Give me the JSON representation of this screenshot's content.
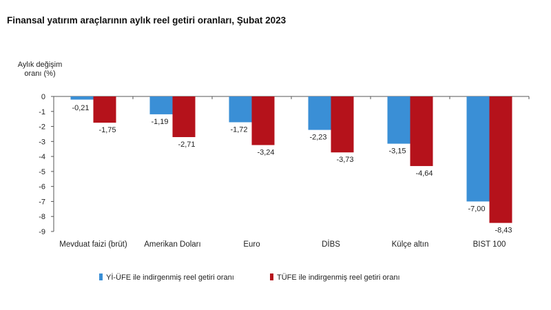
{
  "title": "Finansal yatırım araçlarının aylık reel getiri oranları, Şubat 2023",
  "colors": {
    "series_1": "#3a8fd6",
    "series_2": "#b5121b",
    "axis": "#555555",
    "text": "#222222"
  },
  "chart_data": {
    "type": "bar",
    "title": "Finansal yatırım araçlarının aylık reel getiri oranları, Şubat 2023",
    "ylabel": "Aylık değişim oranı (%)",
    "ylabel_lines": [
      "Aylık değişim",
      "oranı (%)"
    ],
    "xlabel": "",
    "ylim": [
      -9,
      0
    ],
    "yticks": [
      0,
      -1,
      -2,
      -3,
      -4,
      -5,
      -6,
      -7,
      -8,
      -9
    ],
    "grid": false,
    "legend_position": "bottom",
    "categories": [
      "Mevduat faizi (brüt)",
      "Amerikan Doları",
      "Euro",
      "DİBS",
      "Külçe altın",
      "BIST 100"
    ],
    "series": [
      {
        "name": "Yİ-ÜFE ile indirgenmiş reel getiri oranı",
        "values": [
          -0.21,
          -1.19,
          -1.72,
          -2.23,
          -3.15,
          -7.0
        ],
        "labels": [
          "-0,21",
          "-1,19",
          "-1,72",
          "-2,23",
          "-3,15",
          "-7,00"
        ]
      },
      {
        "name": "TÜFE ile indirgenmiş reel getiri oranı",
        "values": [
          -1.75,
          -2.71,
          -3.24,
          -3.73,
          -4.64,
          -8.43
        ],
        "labels": [
          "-1,75",
          "-2,71",
          "-3,24",
          "-3,73",
          "-4,64",
          "-8,43"
        ]
      }
    ]
  }
}
